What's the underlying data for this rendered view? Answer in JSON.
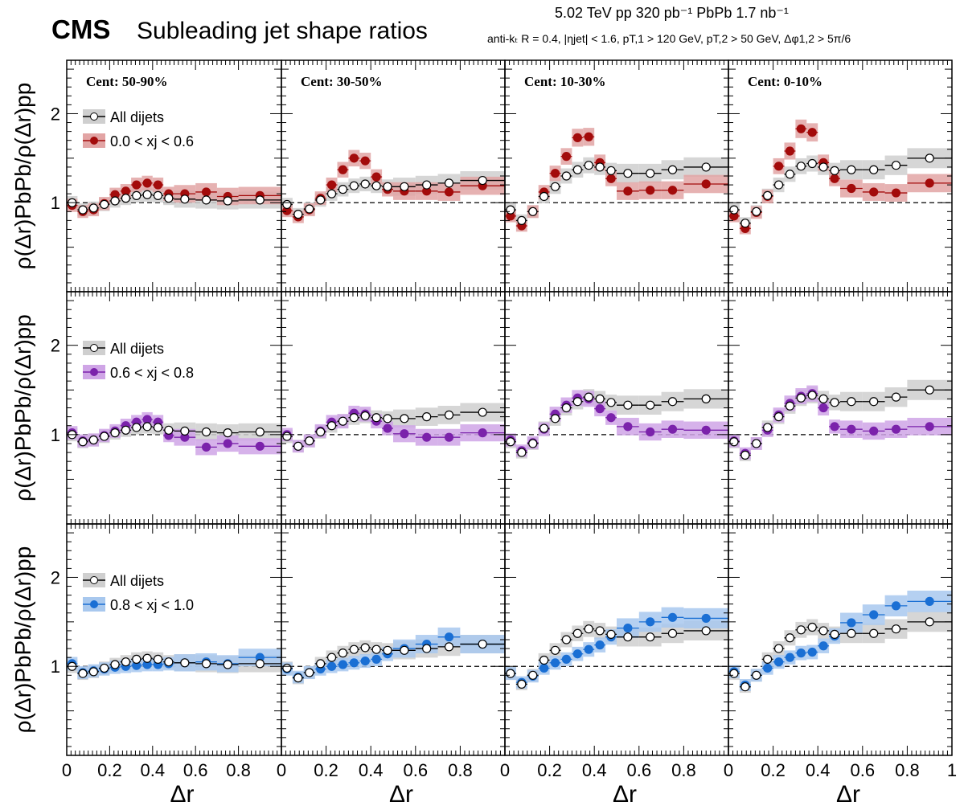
{
  "header": {
    "experiment": "CMS",
    "title": "Subleading jet shape ratios",
    "energy_line": "5.02 TeV   pp 320 pb⁻¹   PbPb 1.7 nb⁻¹",
    "cuts_line": "anti-kₜ R = 0.4, |ηjet| < 1.6, pT,1 > 120 GeV, pT,2 > 50 GeV, Δφ1,2 > 5π/6"
  },
  "chart_data": {
    "type": "scatter",
    "xlabel": "Δr",
    "ylabel": "ρ(Δr)PbPb/ρ(Δr)pp",
    "xlim": [
      0,
      1
    ],
    "ylim": [
      0.0,
      2.6
    ],
    "x_ticks": [
      "0",
      "0.2",
      "0.4",
      "0.6",
      "0.8",
      "1"
    ],
    "y_ticks": [
      "1",
      "2"
    ],
    "reference_line": 1,
    "centrality_labels": [
      "Cent: 50-90%",
      "Cent: 30-50%",
      "Cent: 10-30%",
      "Cent: 0-10%"
    ],
    "x": [
      0.025,
      0.075,
      0.125,
      0.175,
      0.225,
      0.275,
      0.325,
      0.375,
      0.425,
      0.475,
      0.55,
      0.65,
      0.75,
      0.9
    ],
    "bin_edges": [
      0,
      0.05,
      0.1,
      0.15,
      0.2,
      0.25,
      0.3,
      0.35,
      0.4,
      0.45,
      0.5,
      0.6,
      0.7,
      0.8,
      1.0
    ],
    "all_dijets_label": "All dijets",
    "all_dijets": [
      [
        1.0,
        0.92,
        0.94,
        0.98,
        1.02,
        1.05,
        1.08,
        1.09,
        1.08,
        1.05,
        1.04,
        1.03,
        1.02,
        1.03
      ],
      [
        0.98,
        0.87,
        0.93,
        1.03,
        1.1,
        1.15,
        1.19,
        1.21,
        1.19,
        1.18,
        1.18,
        1.2,
        1.22,
        1.25
      ],
      [
        0.92,
        0.8,
        0.9,
        1.07,
        1.18,
        1.3,
        1.37,
        1.42,
        1.4,
        1.36,
        1.33,
        1.33,
        1.37,
        1.4
      ],
      [
        0.92,
        0.77,
        0.9,
        1.08,
        1.2,
        1.32,
        1.41,
        1.44,
        1.4,
        1.36,
        1.37,
        1.37,
        1.42,
        1.5
      ]
    ],
    "series": [
      {
        "name": "0.0 < xj < 0.6",
        "color": "#a30b0b",
        "band": "#e2a4a4",
        "values": [
          [
            0.97,
            0.9,
            0.92,
            0.99,
            1.09,
            1.13,
            1.2,
            1.22,
            1.2,
            1.1,
            1.1,
            1.12,
            1.07,
            1.08
          ],
          [
            0.91,
            0.84,
            0.92,
            1.05,
            1.2,
            1.37,
            1.5,
            1.47,
            1.29,
            1.15,
            1.13,
            1.13,
            1.12,
            1.19
          ],
          [
            0.85,
            0.74,
            0.9,
            1.12,
            1.33,
            1.52,
            1.73,
            1.74,
            1.45,
            1.27,
            1.13,
            1.14,
            1.14,
            1.21
          ],
          [
            0.85,
            0.71,
            0.89,
            1.07,
            1.41,
            1.58,
            1.83,
            1.79,
            1.45,
            1.27,
            1.16,
            1.12,
            1.11,
            1.22
          ]
        ]
      },
      {
        "name": "0.6 < xj < 0.8",
        "color": "#7b22ab",
        "band": "#cfa5e6",
        "values": [
          [
            1.02,
            0.93,
            0.94,
            0.99,
            1.04,
            1.1,
            1.14,
            1.17,
            1.14,
            0.99,
            0.97,
            0.86,
            0.9,
            0.87
          ],
          [
            1.0,
            0.87,
            0.93,
            1.04,
            1.14,
            1.15,
            1.24,
            1.23,
            1.15,
            1.07,
            1.01,
            0.97,
            0.97,
            1.02
          ],
          [
            0.94,
            0.82,
            0.91,
            1.06,
            1.23,
            1.33,
            1.41,
            1.4,
            1.29,
            1.19,
            1.09,
            1.03,
            1.06,
            1.05
          ],
          [
            0.93,
            0.79,
            0.9,
            1.05,
            1.22,
            1.35,
            1.43,
            1.46,
            1.3,
            1.09,
            1.06,
            1.04,
            1.06,
            1.09
          ]
        ]
      },
      {
        "name": "0.8 < xj < 1.0",
        "color": "#1a6fd4",
        "band": "#a8c8ee",
        "values": [
          [
            1.03,
            0.93,
            0.95,
            0.97,
            0.99,
            1.0,
            1.01,
            1.02,
            1.02,
            1.03,
            1.04,
            1.05,
            1.03,
            1.1
          ],
          [
            0.97,
            0.88,
            0.93,
            0.97,
            1.0,
            1.02,
            1.04,
            1.06,
            1.08,
            1.14,
            1.2,
            1.25,
            1.33,
            1.25
          ],
          [
            0.92,
            0.82,
            0.89,
            0.98,
            1.04,
            1.08,
            1.14,
            1.19,
            1.24,
            1.33,
            1.43,
            1.5,
            1.55,
            1.54
          ],
          [
            0.94,
            0.79,
            0.9,
            0.98,
            1.05,
            1.1,
            1.15,
            1.16,
            1.23,
            1.34,
            1.49,
            1.58,
            1.68,
            1.73
          ]
        ]
      }
    ]
  }
}
